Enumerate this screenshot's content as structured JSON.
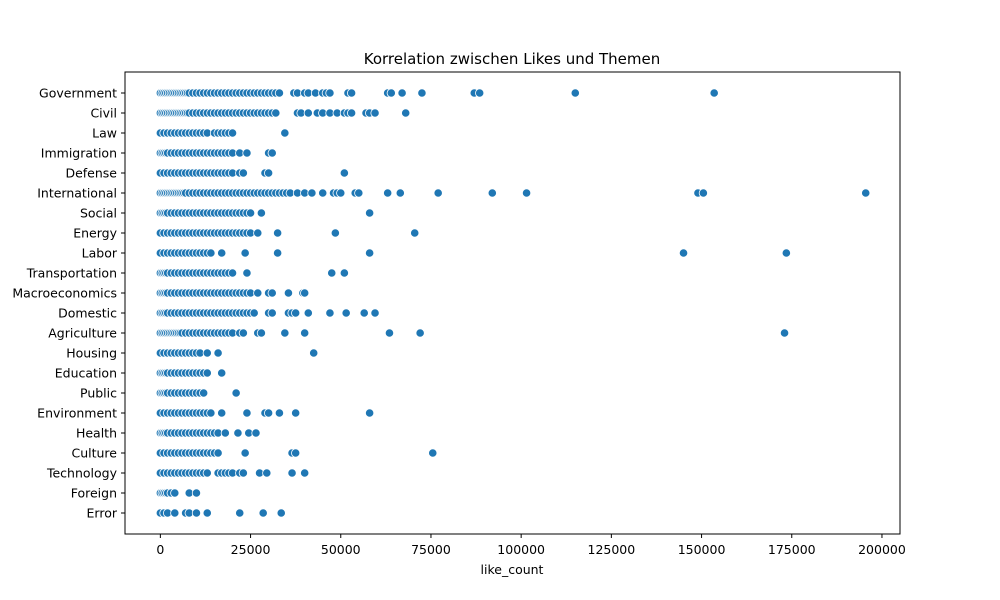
{
  "chart_data": {
    "type": "scatter",
    "title": "Korrelation zwischen Likes und Themen",
    "xlabel": "like_count",
    "ylabel": "",
    "xlim": [
      -9800,
      205000
    ],
    "xticks": [
      0,
      25000,
      50000,
      75000,
      100000,
      125000,
      150000,
      175000,
      200000
    ],
    "grid": false,
    "legend": "none",
    "point_color": "#1f77b4",
    "categories": [
      "Government",
      "Civil",
      "Law",
      "Immigration",
      "Defense",
      "International",
      "Social",
      "Energy",
      "Labor",
      "Transportation",
      "Macroeconomics",
      "Domestic",
      "Agriculture",
      "Housing",
      "Education",
      "Public",
      "Environment",
      "Health",
      "Culture",
      "Technology",
      "Foreign",
      "Error"
    ],
    "points": {
      "Government": [
        0,
        500,
        1000,
        1500,
        2000,
        2500,
        3000,
        3500,
        4000,
        4500,
        5000,
        5500,
        6000,
        6500,
        7000,
        7500,
        8000,
        9000,
        10000,
        11000,
        12000,
        13000,
        14000,
        15000,
        16000,
        17000,
        18000,
        19000,
        20000,
        21000,
        22000,
        23000,
        24000,
        25000,
        26000,
        27000,
        28000,
        29000,
        30000,
        31000,
        32000,
        33000,
        37000,
        38000,
        40000,
        41000,
        43000,
        45000,
        46000,
        47000,
        52000,
        53000,
        63000,
        64000,
        67000,
        72500,
        87000,
        88500,
        115000,
        153500
      ],
      "Civil": [
        0,
        500,
        1000,
        1500,
        2000,
        2500,
        3000,
        3500,
        4000,
        4500,
        5000,
        5500,
        6000,
        6500,
        7000,
        7500,
        8000,
        9000,
        10000,
        11000,
        12000,
        13000,
        14000,
        15000,
        16000,
        17000,
        18000,
        19000,
        20000,
        21000,
        22000,
        23000,
        24000,
        25000,
        26000,
        27000,
        28000,
        29000,
        30000,
        31000,
        32000,
        38000,
        39000,
        41000,
        43500,
        45000,
        47000,
        49000,
        51000,
        52000,
        53000,
        57000,
        58000,
        59500,
        68000
      ],
      "Law": [
        0,
        1000,
        2000,
        3000,
        4000,
        5000,
        6000,
        7000,
        8000,
        9000,
        10000,
        11000,
        12000,
        13000,
        15000,
        16000,
        17000,
        18000,
        19000,
        20000,
        34500
      ],
      "Immigration": [
        0,
        500,
        1000,
        1500,
        2000,
        3000,
        4000,
        5000,
        6000,
        7000,
        8000,
        9000,
        10000,
        11000,
        12000,
        13000,
        14000,
        15000,
        16000,
        17000,
        18000,
        19000,
        20000,
        22000,
        24000,
        30000,
        31000
      ],
      "Defense": [
        0,
        1000,
        2000,
        3000,
        4000,
        5000,
        6000,
        7000,
        8000,
        9000,
        10000,
        11000,
        12000,
        13000,
        14000,
        15000,
        16000,
        17000,
        18000,
        19000,
        20000,
        22000,
        23000,
        29000,
        30000,
        51000
      ],
      "International": [
        0,
        500,
        1000,
        1500,
        2000,
        2500,
        3000,
        3500,
        4000,
        4500,
        5000,
        5500,
        6000,
        6500,
        7000,
        8000,
        9000,
        10000,
        11000,
        12000,
        13000,
        14000,
        15000,
        16000,
        17000,
        18000,
        19000,
        20000,
        21000,
        22000,
        23000,
        24000,
        25000,
        26000,
        27000,
        28000,
        29000,
        30000,
        31000,
        32000,
        33000,
        34000,
        35000,
        36000,
        38000,
        40000,
        42000,
        45000,
        48000,
        49000,
        50000,
        54000,
        55000,
        63000,
        66500,
        77000,
        92000,
        101500,
        149000,
        150500,
        195500
      ],
      "Social": [
        0,
        500,
        1000,
        1500,
        2000,
        3000,
        4000,
        5000,
        6000,
        7000,
        8000,
        9000,
        10000,
        11000,
        12000,
        13000,
        14000,
        15000,
        16000,
        17000,
        18000,
        19000,
        20000,
        21000,
        22000,
        23000,
        24000,
        25000,
        28000,
        58000
      ],
      "Energy": [
        0,
        1000,
        2000,
        3000,
        4000,
        5000,
        6000,
        7000,
        8000,
        9000,
        10000,
        11000,
        12000,
        13000,
        14000,
        15000,
        16000,
        17000,
        18000,
        19000,
        20000,
        21000,
        22000,
        23000,
        24000,
        25000,
        27000,
        32500,
        48500,
        70500
      ],
      "Labor": [
        0,
        1000,
        2000,
        3000,
        4000,
        5000,
        6000,
        7000,
        8000,
        9000,
        10000,
        11000,
        12000,
        13000,
        14000,
        17000,
        23500,
        32500,
        58000,
        145000,
        173500
      ],
      "Transportation": [
        0,
        500,
        1000,
        1500,
        2000,
        3000,
        4000,
        5000,
        6000,
        7000,
        8000,
        9000,
        10000,
        11000,
        12000,
        13000,
        14000,
        15000,
        16000,
        17000,
        18000,
        19000,
        20000,
        24000,
        47500,
        51000
      ],
      "Macroeconomics": [
        0,
        500,
        1000,
        1500,
        2000,
        3000,
        4000,
        5000,
        6000,
        7000,
        8000,
        9000,
        10000,
        11000,
        12000,
        13000,
        14000,
        15000,
        16000,
        17000,
        18000,
        19000,
        20000,
        21000,
        22000,
        23000,
        24000,
        25000,
        27000,
        30000,
        31000,
        35500,
        39500,
        40000
      ],
      "Domestic": [
        0,
        500,
        1000,
        1500,
        2000,
        3000,
        4000,
        5000,
        6000,
        7000,
        8000,
        9000,
        10000,
        11000,
        12000,
        13000,
        14000,
        15000,
        16000,
        17000,
        18000,
        19000,
        20000,
        21000,
        22000,
        23000,
        24000,
        25000,
        26000,
        30000,
        31000,
        35500,
        36500,
        37500,
        41000,
        47000,
        51500,
        56500,
        59500
      ],
      "Agriculture": [
        0,
        500,
        1000,
        1500,
        2000,
        2500,
        3000,
        3500,
        4000,
        4500,
        5000,
        5500,
        6000,
        7000,
        8000,
        9000,
        10000,
        11000,
        12000,
        13000,
        14000,
        15000,
        16000,
        17000,
        18000,
        19000,
        20000,
        22000,
        23000,
        27000,
        28000,
        34500,
        40000,
        63500,
        72000,
        173000
      ],
      "Housing": [
        0,
        1000,
        2000,
        3000,
        4000,
        5000,
        6000,
        7000,
        8000,
        9000,
        10000,
        11000,
        13000,
        16000,
        42500
      ],
      "Education": [
        0,
        500,
        1000,
        1500,
        2000,
        3000,
        4000,
        5000,
        6000,
        7000,
        8000,
        9000,
        10000,
        11000,
        12000,
        13000,
        17000
      ],
      "Public": [
        0,
        500,
        1000,
        1500,
        2000,
        3000,
        4000,
        5000,
        6000,
        7000,
        8000,
        9000,
        10000,
        11000,
        12000,
        21000
      ],
      "Environment": [
        0,
        1000,
        2000,
        3000,
        4000,
        5000,
        6000,
        7000,
        8000,
        9000,
        10000,
        11000,
        12000,
        13000,
        14000,
        17000,
        24000,
        29000,
        30000,
        33000,
        37500,
        58000
      ],
      "Health": [
        0,
        500,
        1000,
        1500,
        2000,
        3000,
        4000,
        5000,
        6000,
        7000,
        8000,
        9000,
        10000,
        11000,
        12000,
        13000,
        14000,
        15000,
        16000,
        18000,
        21500,
        24500,
        26500
      ],
      "Culture": [
        0,
        1000,
        2000,
        3000,
        4000,
        5000,
        6000,
        7000,
        8000,
        9000,
        10000,
        11000,
        12000,
        13000,
        14000,
        15000,
        16000,
        23500,
        36500,
        37500,
        75500
      ],
      "Technology": [
        0,
        1000,
        2000,
        3000,
        4000,
        5000,
        6000,
        7000,
        8000,
        9000,
        10000,
        11000,
        12000,
        13000,
        16000,
        17000,
        18000,
        19000,
        20000,
        22000,
        23000,
        27500,
        29500,
        36500,
        40000
      ],
      "Foreign": [
        0,
        500,
        1000,
        1500,
        2000,
        3000,
        4000,
        8000,
        10000
      ],
      "Error": [
        0,
        1000,
        2000,
        4000,
        7000,
        8000,
        10000,
        13000,
        22000,
        28500,
        33500
      ]
    }
  }
}
